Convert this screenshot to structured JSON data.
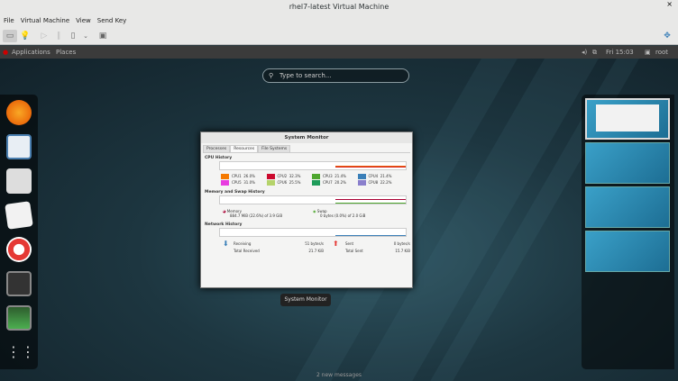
{
  "window": {
    "title": "rhel7-latest Virtual Machine",
    "close": "×"
  },
  "menu": [
    "File",
    "Virtual Machine",
    "View",
    "Send Key"
  ],
  "toolbar": {
    "icons": [
      "console-icon",
      "details-icon",
      "run-icon",
      "pause-icon",
      "shutdown-icon",
      "dropdown-icon",
      "fullscreen-icon"
    ]
  },
  "topbar": {
    "applications": "Applications",
    "places": "Places",
    "clock": "Fri 15:03",
    "user": "root"
  },
  "search": {
    "placeholder": "Type to search..."
  },
  "dash": [
    "firefox",
    "writer",
    "files-manager",
    "documents",
    "help",
    "terminal",
    "system-monitor",
    "show-applications"
  ],
  "monitor": {
    "title": "System Monitor",
    "tabs": [
      "Processes",
      "Resources",
      "File Systems"
    ],
    "cpu_title": "CPU History",
    "cpus": [
      {
        "label": "CPU1",
        "value": "26.0%",
        "color": "#f57900"
      },
      {
        "label": "CPU2",
        "value": "32.3%",
        "color": "#cc0a2e"
      },
      {
        "label": "CPU3",
        "value": "21.4%",
        "color": "#4ea72e"
      },
      {
        "label": "CPU4",
        "value": "21.4%",
        "color": "#3a7fb8"
      },
      {
        "label": "CPU5",
        "value": "31.0%",
        "color": "#e83de0"
      },
      {
        "label": "CPU6",
        "value": "25.5%",
        "color": "#b5d36a"
      },
      {
        "label": "CPU7",
        "value": "20.2%",
        "color": "#1f9c5a"
      },
      {
        "label": "CPU8",
        "value": "22.2%",
        "color": "#8a7fcc"
      }
    ],
    "mem_title": "Memory and Swap History",
    "memory": {
      "label": "Memory",
      "value": "884.7 MiB (22.6%) of 3.9 GiB"
    },
    "swap": {
      "label": "Swap",
      "value": "0 bytes (0.0%) of 2.0 GiB"
    },
    "net_title": "Network History",
    "receiving": {
      "label": "Receiving",
      "value": "51 bytes/s"
    },
    "total_received": {
      "label": "Total Received",
      "value": "21.7 KiB"
    },
    "sent": {
      "label": "Sent",
      "value": "0 bytes/s"
    },
    "total_sent": {
      "label": "Total Sent",
      "value": "15.7 KiB"
    }
  },
  "window_label": "System Monitor",
  "messages": "2 new messages"
}
